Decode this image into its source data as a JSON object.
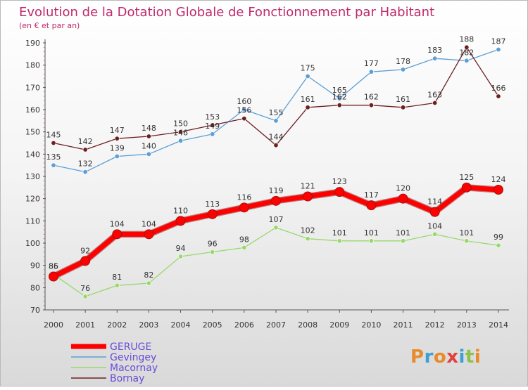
{
  "chart_data": {
    "type": "line",
    "title": "Evolution de la Dotation Globale de Fonctionnement par Habitant",
    "subtitle": "(en € et par an)",
    "xlabel": "",
    "ylabel": "",
    "ylim": [
      70,
      190
    ],
    "yticks": [
      70,
      80,
      90,
      100,
      110,
      120,
      130,
      140,
      150,
      160,
      170,
      180,
      190
    ],
    "x": [
      "2000",
      "2001",
      "2002",
      "2003",
      "2004",
      "2005",
      "2006",
      "2007",
      "2008",
      "2009",
      "2010",
      "2011",
      "2012",
      "2013",
      "2014"
    ],
    "grid": false,
    "legend_position": "bottom-left",
    "series": [
      {
        "name": "GERUGE",
        "color": "#ff0000",
        "values": [
          85,
          92,
          104,
          104,
          110,
          113,
          116,
          119,
          121,
          123,
          117,
          120,
          114,
          125,
          124
        ]
      },
      {
        "name": "Gevingey",
        "color": "#5c9ed6",
        "values": [
          135,
          132,
          139,
          140,
          146,
          149,
          160,
          155,
          175,
          165,
          177,
          178,
          183,
          182,
          187
        ]
      },
      {
        "name": "Macornay",
        "color": "#98d86c",
        "values": [
          86,
          76,
          81,
          82,
          94,
          96,
          98,
          107,
          102,
          101,
          101,
          101,
          104,
          101,
          99
        ]
      },
      {
        "name": "Bornay",
        "color": "#6d1f22",
        "values": [
          145,
          142,
          147,
          148,
          150,
          153,
          156,
          144,
          161,
          162,
          162,
          161,
          163,
          188,
          166
        ]
      }
    ]
  },
  "labels": {
    "Gevingey": [
      "135",
      "132",
      "139",
      "140",
      "146",
      "149",
      "160",
      "155",
      "175",
      "165",
      "177",
      "178",
      "183",
      "182",
      "187"
    ],
    "Bornay": [
      "145",
      "142",
      "147",
      "148",
      "150",
      "153",
      "156",
      "144",
      "161",
      "162",
      "162",
      "161",
      "163",
      "188",
      "166"
    ],
    "Macornay": [
      "86",
      "76",
      "81",
      "82",
      "94",
      "96",
      "98",
      "107",
      "102",
      "101",
      "101",
      "101",
      "104",
      "101",
      "99"
    ],
    "GERUGE": [
      "85",
      "92",
      "104",
      "104",
      "110",
      "113",
      "116",
      "119",
      "121",
      "123",
      "117",
      "120",
      "114",
      "125",
      "124"
    ]
  },
  "logo": {
    "text": "Proxiti"
  },
  "colors": {
    "title": "#c0286b",
    "axis": "#c0286b",
    "text": "#333333"
  }
}
